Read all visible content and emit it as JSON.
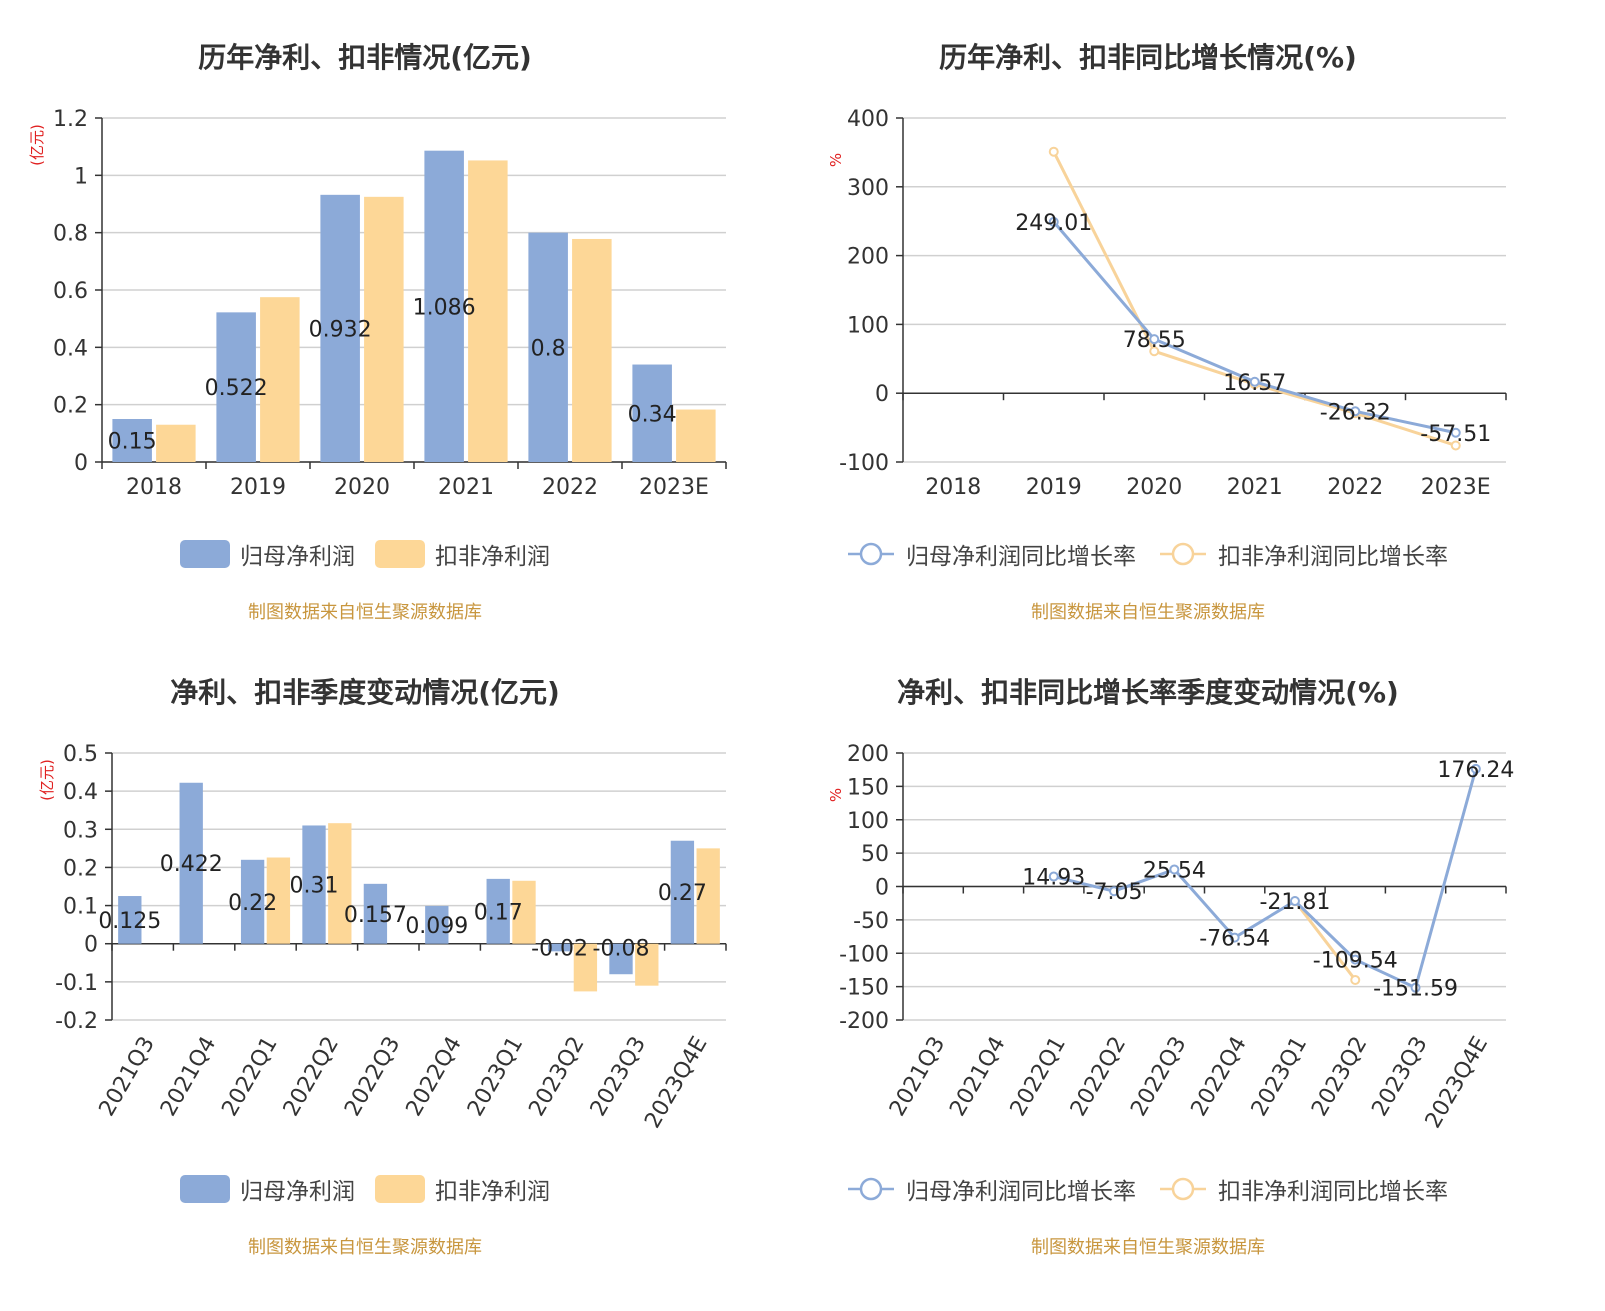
{
  "colors": {
    "netProfit": "#8caad8",
    "deducted": "#fdd797",
    "netLine": "#8caad8",
    "dedLine": "#f8d39a",
    "grid": "#d0d0d0",
    "axis": "#333333",
    "unitRed": "#e02020"
  },
  "source_note": "制图数据来自恒生聚源数据库",
  "chart_data": [
    {
      "id": "annual_profit",
      "type": "bar",
      "title": "历年净利、扣非情况(亿元)",
      "ylabel": "(亿元)",
      "categories": [
        "2018",
        "2019",
        "2020",
        "2021",
        "2022",
        "2023E"
      ],
      "yticks": [
        0,
        0.2,
        0.4,
        0.6,
        0.8,
        1,
        1.2
      ],
      "ylim": [
        0,
        1.2
      ],
      "series": [
        {
          "name": "归母净利润",
          "values": [
            0.15,
            0.522,
            0.932,
            1.086,
            0.8,
            0.34
          ],
          "labels": [
            "0.15",
            "0.522",
            "0.932",
            "1.086",
            "0.8",
            "0.34"
          ]
        },
        {
          "name": "扣非净利润",
          "values": [
            0.13,
            0.575,
            0.925,
            1.052,
            0.778,
            0.183
          ]
        }
      ]
    },
    {
      "id": "annual_growth",
      "type": "line",
      "title": "历年净利、扣非同比增长情况(%)",
      "ylabel": "%",
      "categories": [
        "2018",
        "2019",
        "2020",
        "2021",
        "2022",
        "2023E"
      ],
      "yticks": [
        -100,
        0,
        100,
        200,
        300,
        400
      ],
      "ylim": [
        -100,
        400
      ],
      "series": [
        {
          "name": "归母净利润同比增长率",
          "values": [
            null,
            249.01,
            78.55,
            16.57,
            -26.32,
            -57.51
          ],
          "labels": [
            null,
            "249.01",
            "78.55",
            "16.57",
            "-26.32",
            "-57.51"
          ]
        },
        {
          "name": "扣非净利润同比增长率",
          "values": [
            null,
            351,
            61,
            13,
            -29,
            -76
          ]
        }
      ]
    },
    {
      "id": "quarterly_profit",
      "type": "bar",
      "title": "净利、扣非季度变动情况(亿元)",
      "ylabel": "(亿元)",
      "categories": [
        "2021Q3",
        "2021Q4",
        "2022Q1",
        "2022Q2",
        "2022Q3",
        "2022Q4",
        "2023Q1",
        "2023Q2",
        "2023Q3",
        "2023Q4E"
      ],
      "yticks": [
        -0.2,
        -0.1,
        0,
        0.1,
        0.2,
        0.3,
        0.4,
        0.5
      ],
      "ylim": [
        -0.2,
        0.5
      ],
      "series": [
        {
          "name": "归母净利润",
          "values": [
            0.125,
            0.422,
            0.22,
            0.31,
            0.157,
            0.099,
            0.17,
            -0.02,
            -0.08,
            0.27
          ],
          "labels": [
            "0.125",
            "0.422",
            "0.22",
            "0.31",
            "0.157",
            "0.099",
            "0.17",
            "-0.02",
            "-0.08",
            "0.27"
          ]
        },
        {
          "name": "扣非净利润",
          "values": [
            null,
            null,
            0.226,
            0.316,
            null,
            null,
            0.165,
            -0.125,
            -0.11,
            0.25
          ]
        }
      ]
    },
    {
      "id": "quarterly_growth",
      "type": "line",
      "title": "净利、扣非同比增长率季度变动情况(%)",
      "ylabel": "%",
      "categories": [
        "2021Q3",
        "2021Q4",
        "2022Q1",
        "2022Q2",
        "2022Q3",
        "2022Q4",
        "2023Q1",
        "2023Q2",
        "2023Q3",
        "2023Q4E"
      ],
      "yticks": [
        -200,
        -150,
        -100,
        -50,
        0,
        50,
        100,
        150,
        200
      ],
      "ylim": [
        -200,
        200
      ],
      "series": [
        {
          "name": "归母净利润同比增长率",
          "values": [
            null,
            null,
            14.93,
            -7.05,
            25.54,
            -76.54,
            -21.81,
            -109.54,
            -151.59,
            176.24
          ],
          "labels": [
            null,
            null,
            "14.93",
            "-7.05",
            "25.54",
            "-76.54",
            "-21.81",
            "-109.54",
            "-151.59",
            "176.24"
          ]
        },
        {
          "name": "扣非净利润同比增长率",
          "values": [
            null,
            null,
            null,
            null,
            null,
            null,
            -22,
            -140,
            null,
            null
          ]
        }
      ]
    }
  ]
}
